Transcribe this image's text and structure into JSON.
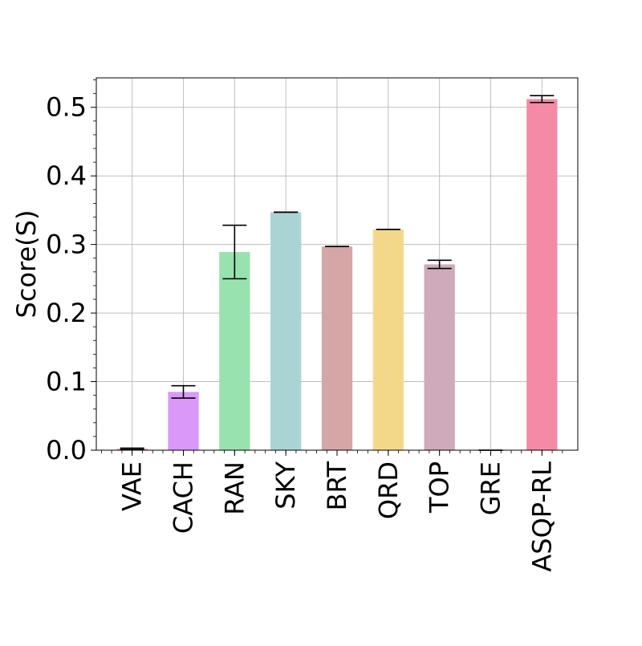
{
  "chart_data": {
    "type": "bar",
    "ylabel": "Score(S)",
    "ylim": [
      0,
      0.543
    ],
    "yticks": [
      0.0,
      0.1,
      0.2,
      0.3,
      0.4,
      0.5
    ],
    "ytick_labels": [
      "0.0",
      "0.1",
      "0.2",
      "0.3",
      "0.4",
      "0.5"
    ],
    "categories": [
      "VAE",
      "CACH",
      "RAN",
      "SKY",
      "BRT",
      "QRD",
      "TOP",
      "GRE",
      "ASQP-RL"
    ],
    "values": [
      0.002,
      0.085,
      0.289,
      0.347,
      0.297,
      0.322,
      0.271,
      0.0,
      0.512
    ],
    "errors": [
      0.001,
      0.009,
      0.039,
      0.0,
      0.0,
      0.0,
      0.006,
      0.0,
      0.005
    ],
    "colors": [
      "#f48fb1",
      "#da98f8",
      "#98e2ae",
      "#aad4d3",
      "#d4a6a6",
      "#f4d88a",
      "#ceaaba",
      "#f4a0b8",
      "#f48aa4"
    ],
    "grid": true,
    "legend": false
  }
}
